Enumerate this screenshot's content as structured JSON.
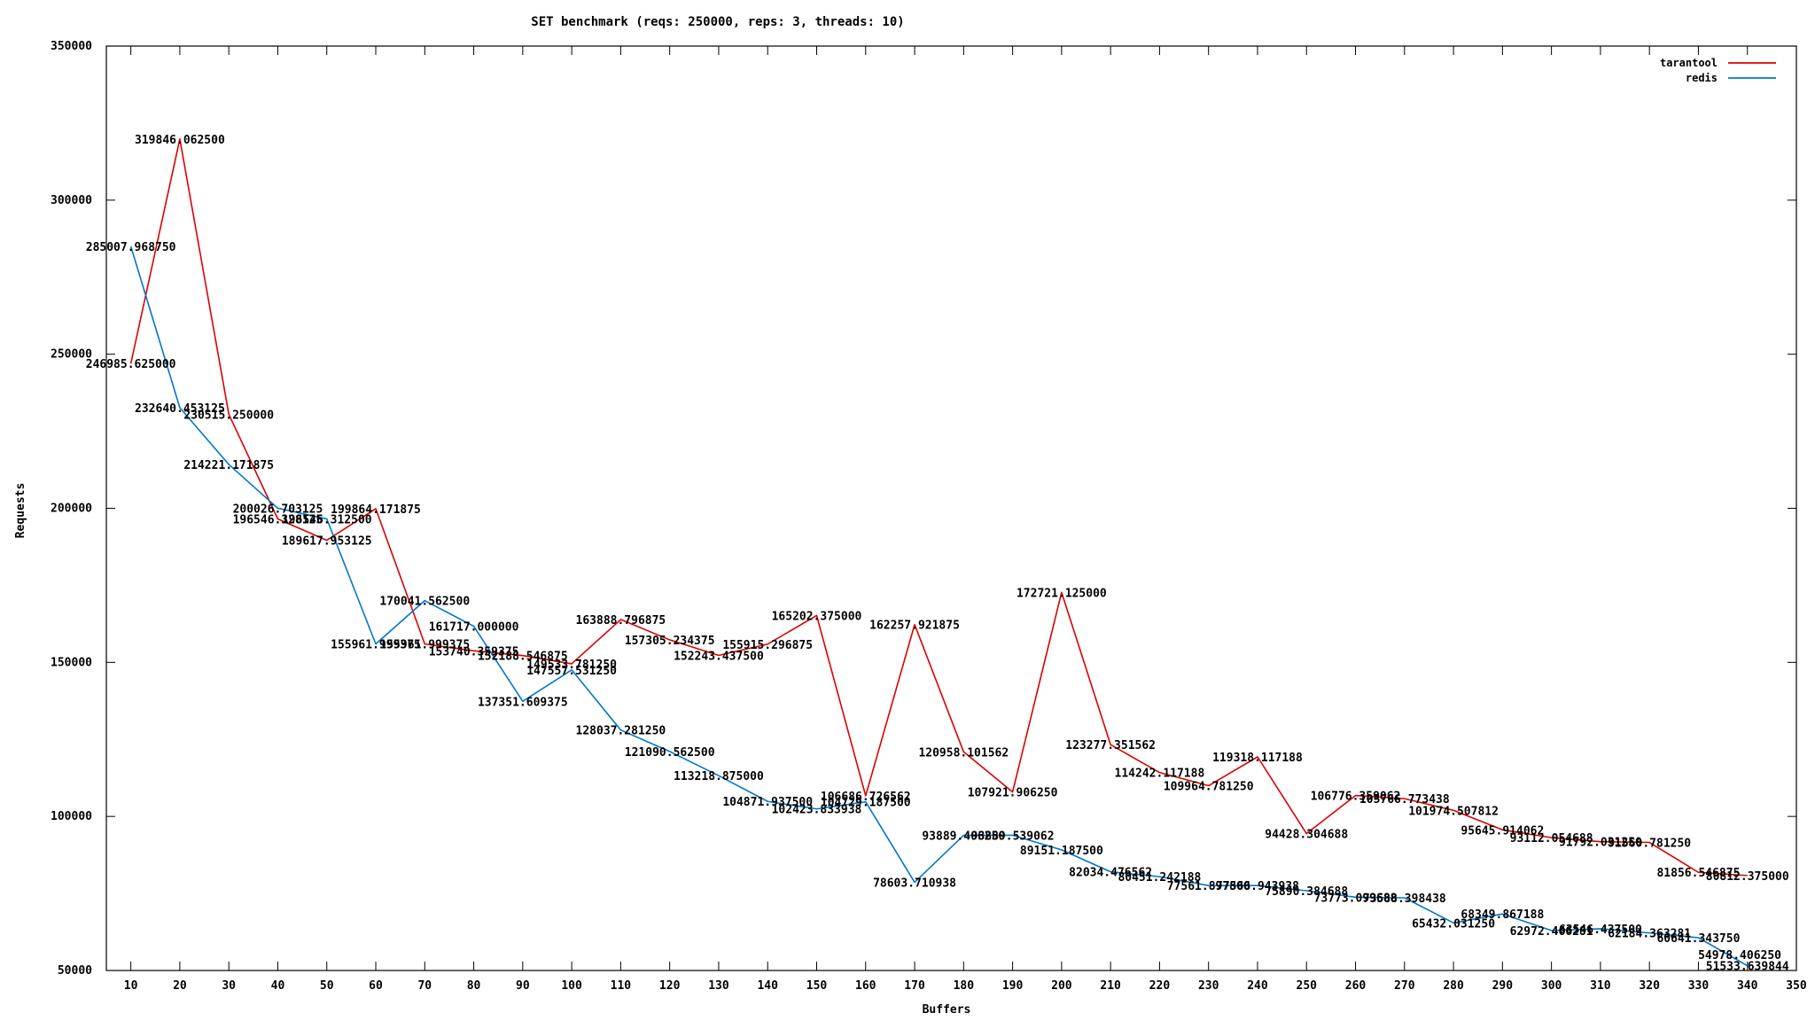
{
  "chart_data": {
    "type": "line",
    "title": "SET benchmark (reqs: 250000, reps: 3, threads: 10)",
    "xlabel": "Buffers",
    "ylabel": "Requests",
    "xlim": [
      5,
      350
    ],
    "ylim": [
      50000,
      350000
    ],
    "x_ticks": [
      "10",
      "20",
      "30",
      "40",
      "50",
      "60",
      "70",
      "80",
      "90",
      "100",
      "110",
      "120",
      "130",
      "140",
      "150",
      "160",
      "170",
      "180",
      "190",
      "200",
      "210",
      "220",
      "230",
      "240",
      "250",
      "260",
      "270",
      "280",
      "290",
      "300",
      "310",
      "320",
      "330",
      "340",
      "350"
    ],
    "y_ticks": [
      "50000",
      "100000",
      "150000",
      "200000",
      "250000",
      "300000",
      "350000"
    ],
    "grid": false,
    "legend_position": "top-right",
    "x": [
      10,
      20,
      30,
      40,
      50,
      60,
      70,
      80,
      90,
      100,
      110,
      120,
      130,
      140,
      150,
      160,
      170,
      180,
      190,
      200,
      210,
      220,
      230,
      240,
      250,
      260,
      270,
      280,
      290,
      300,
      310,
      320,
      330,
      340
    ],
    "series": [
      {
        "name": "tarantool",
        "color": "#dd0000",
        "values": [
          246985.625,
          319846.0625,
          230515.25,
          196546.328125,
          189617.953125,
          199864.171875,
          155961.999375,
          153740.359375,
          152188.546875,
          149533.78125,
          163888.796875,
          157305.234375,
          152243.4375,
          155915.296875,
          165202.375,
          106686.726562,
          162257.921875,
          120958.101562,
          107921.90625,
          172721.125,
          123277.351562,
          114242.117188,
          109964.78125,
          119318.117188,
          94428.304688,
          106776.359062,
          105766.773438,
          101974.507812,
          95645.914062,
          93112.054688,
          91792.03125,
          91560.78125,
          81856.546875,
          80812.375
        ],
        "labels": [
          "246985.625000",
          "319846.062500",
          "230515.250000",
          "196546.328125",
          "189617.953125",
          "199864.171875",
          "155961.999375",
          "153740.359375",
          "152188.546875",
          "149533.781250",
          "163888.796875",
          "157305.234375",
          "152243.437500",
          "155915.296875",
          "165202.375000",
          "106686.726562",
          "162257.921875",
          "120958.101562",
          "107921.906250",
          "172721.125000",
          "123277.351562",
          "114242.117188",
          "109964.781250",
          "119318.117188",
          "94428.304688",
          "106776.359062",
          "105766.773438",
          "101974.507812",
          "95645.914062",
          "93112.054688",
          "91792.031250",
          "91560.781250",
          "81856.546875",
          "80812.375000"
        ]
      },
      {
        "name": "redis",
        "color": "#0077cc",
        "values": [
          285007.96875,
          232640.453125,
          214221.171875,
          200026.703125,
          196546.3125,
          155961.999375,
          170041.5625,
          161717.0,
          137351.609375,
          147557.53125,
          128037.28125,
          121090.5625,
          113218.875,
          104871.9375,
          102423.833938,
          104729.1875,
          78603.710938,
          93889.40625,
          93889.539062,
          89151.1875,
          82034.476562,
          80451.242188,
          77561.8978,
          77566.943938,
          75890.384688,
          73773.099688,
          73588.398438,
          65432.03125,
          68349.867188,
          62972.466281,
          63546.4375,
          62184.363281,
          60641.34375,
          51533.639844
        ],
        "labels": [
          "285007.968750",
          "232640.453125",
          "214221.171875",
          "200026.703125",
          "196546.312500",
          "155961.999375",
          "170041.562500",
          "161717.000000",
          "137351.609375",
          "147557.531250",
          "128037.281250",
          "121090.562500",
          "113218.875000",
          "104871.937500",
          "102423.833938",
          "104729.187500",
          "78603.710938",
          "93889.406250",
          "93889.539062",
          "89151.187500",
          "82034.476562",
          "80451.242188",
          "77561.897800",
          "77566.943938",
          "75890.384688",
          "73773.099688",
          "73588.398438",
          "65432.031250",
          "68349.867188",
          "62972.466281",
          "63546.437500",
          "62184.363281",
          "60641.343750",
          "51533.639844"
        ]
      }
    ],
    "extra_labels": [
      "54978.406250"
    ]
  }
}
